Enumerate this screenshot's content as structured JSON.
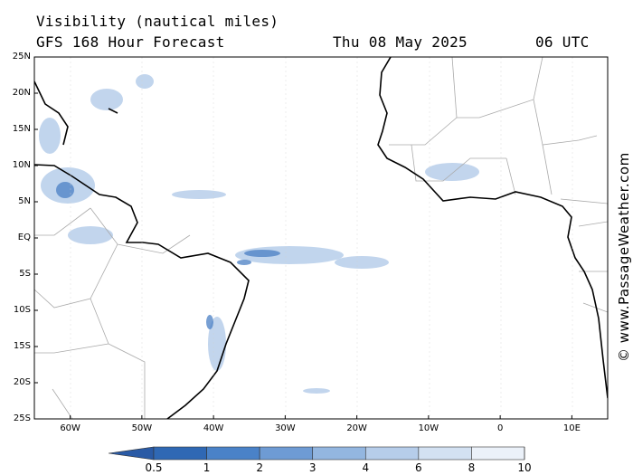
{
  "header": {
    "title": "Visibility (nautical miles)",
    "subtitle": "GFS 168 Hour Forecast",
    "date": "Thu 08 May 2025",
    "time": "06 UTC"
  },
  "axes": {
    "lat_labels": [
      "25N",
      "20N",
      "15N",
      "10N",
      "5N",
      "EQ",
      "5S",
      "10S",
      "15S",
      "20S",
      "25S"
    ],
    "lat_values": [
      25,
      20,
      15,
      10,
      5,
      0,
      -5,
      -10,
      -15,
      -20,
      -25
    ],
    "lon_labels": [
      "60W",
      "50W",
      "40W",
      "30W",
      "20W",
      "10W",
      "0",
      "10E"
    ],
    "lon_values": [
      -60,
      -50,
      -40,
      -30,
      -20,
      -10,
      0,
      10
    ],
    "lon_range": [
      -65,
      15
    ],
    "lat_range": [
      -25,
      25
    ]
  },
  "colorbar": {
    "labels": [
      "0.5",
      "1",
      "2",
      "3",
      "4",
      "6",
      "8",
      "10"
    ],
    "colors": [
      "#2f68b4",
      "#4a82c8",
      "#6e9bd4",
      "#93b6e0",
      "#b6cdea",
      "#d3e1f2",
      "#ebf1f9",
      "#ffffff"
    ]
  },
  "credit": "© www.PassageWeather.com"
}
